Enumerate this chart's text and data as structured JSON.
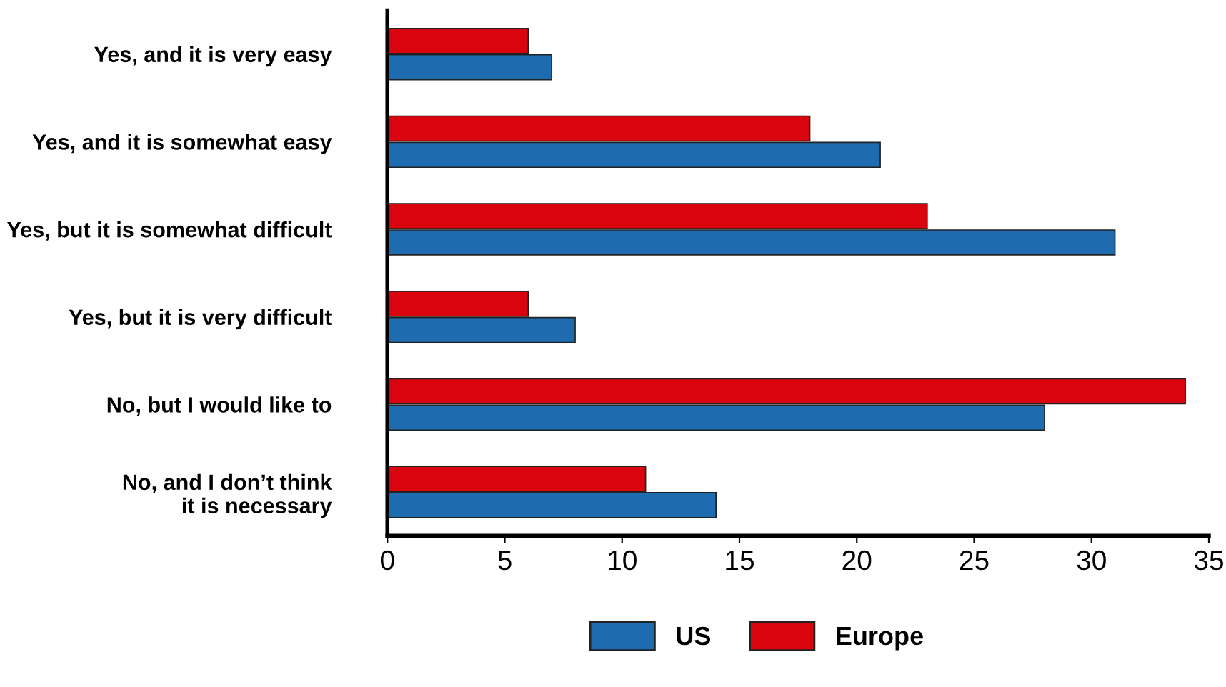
{
  "chart_data": {
    "type": "bar",
    "orientation": "horizontal",
    "categories": [
      "Yes, and it is very easy",
      "Yes, and it is somewhat easy",
      "Yes, but it is somewhat difficult",
      "Yes, but it is very difficult",
      "No, but I would like to",
      "No, and I don’t think\nit is necessary"
    ],
    "series": [
      {
        "name": "Europe",
        "color": "#d9040e",
        "values": [
          6,
          18,
          23,
          6,
          34,
          11
        ]
      },
      {
        "name": "US",
        "color": "#1f6bb0",
        "values": [
          7,
          21,
          31,
          8,
          28,
          14
        ]
      }
    ],
    "xlim": [
      0,
      35
    ],
    "xticks": [
      0,
      5,
      10,
      15,
      20,
      25,
      30,
      35
    ],
    "grid": false,
    "legend": "bottom"
  }
}
